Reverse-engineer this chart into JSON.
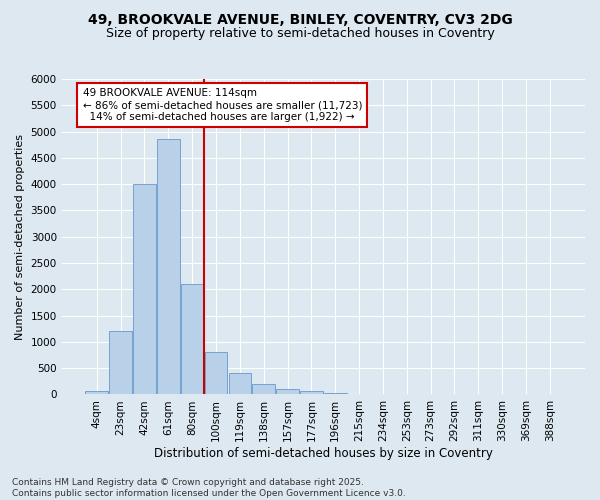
{
  "title1": "49, BROOKVALE AVENUE, BINLEY, COVENTRY, CV3 2DG",
  "title2": "Size of property relative to semi-detached houses in Coventry",
  "xlabel": "Distribution of semi-detached houses by size in Coventry",
  "ylabel": "Number of semi-detached properties",
  "categories": [
    "4sqm",
    "23sqm",
    "42sqm",
    "61sqm",
    "80sqm",
    "100sqm",
    "119sqm",
    "138sqm",
    "157sqm",
    "177sqm",
    "196sqm",
    "215sqm",
    "234sqm",
    "253sqm",
    "273sqm",
    "292sqm",
    "311sqm",
    "330sqm",
    "369sqm",
    "388sqm"
  ],
  "values": [
    75,
    1200,
    4000,
    4850,
    2100,
    800,
    400,
    200,
    110,
    65,
    30,
    15,
    5,
    2,
    0,
    0,
    0,
    0,
    0,
    0
  ],
  "bar_color": "#b8d0e8",
  "bar_edge_color": "#6699cc",
  "vline_color": "#cc0000",
  "vline_x": 4.5,
  "annotation_text": "49 BROOKVALE AVENUE: 114sqm\n← 86% of semi-detached houses are smaller (11,723)\n  14% of semi-detached houses are larger (1,922) →",
  "annotation_box_color": "#ffffff",
  "annotation_box_edge_color": "#cc0000",
  "ylim": [
    0,
    6000
  ],
  "yticks": [
    0,
    500,
    1000,
    1500,
    2000,
    2500,
    3000,
    3500,
    4000,
    4500,
    5000,
    5500,
    6000
  ],
  "background_color": "#dde8f0",
  "axes_background_color": "#dde8f0",
  "grid_color": "#ffffff",
  "footer_text": "Contains HM Land Registry data © Crown copyright and database right 2025.\nContains public sector information licensed under the Open Government Licence v3.0.",
  "title1_fontsize": 10,
  "title2_fontsize": 9,
  "xlabel_fontsize": 8.5,
  "ylabel_fontsize": 8,
  "tick_fontsize": 7.5,
  "annotation_fontsize": 7.5,
  "footer_fontsize": 6.5
}
